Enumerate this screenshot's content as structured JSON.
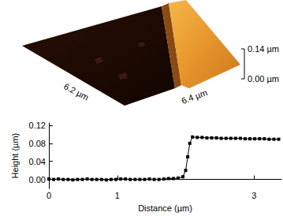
{
  "afm_image": {
    "x_size_label": "6.2 µm",
    "y_size_label": "6.4 µm",
    "z_labels": [
      "0.14 µm",
      "0.00 µm"
    ]
  },
  "chart_data": {
    "type": "line",
    "x_label": "Distance (µm)",
    "y_label": "Height (µm)",
    "x": [
      0,
      0.07,
      0.14,
      0.21,
      0.28,
      0.35,
      0.42,
      0.49,
      0.56,
      0.63,
      0.7,
      0.77,
      0.84,
      0.91,
      0.98,
      1.05,
      1.12,
      1.19,
      1.26,
      1.33,
      1.4,
      1.47,
      1.54,
      1.61,
      1.68,
      1.75,
      1.82,
      1.89,
      1.96,
      2.0,
      2.03,
      2.06,
      2.1,
      2.17,
      2.24,
      2.31,
      2.38,
      2.45,
      2.52,
      2.59,
      2.66,
      2.73,
      2.8,
      2.87,
      2.94,
      3.01,
      3.08,
      3.15,
      3.22,
      3.29,
      3.36
    ],
    "values": [
      0.001,
      0.0,
      0.001,
      0.0,
      0.0,
      -0.001,
      0.0,
      0.0,
      0.001,
      0.0,
      0.0,
      0.0,
      -0.001,
      0.0,
      0.0,
      0.001,
      0.001,
      0.0,
      0.0,
      0.0,
      0.0,
      0.001,
      0.0,
      0.0,
      0.001,
      0.002,
      0.002,
      0.003,
      0.006,
      0.02,
      0.05,
      0.08,
      0.094,
      0.093,
      0.093,
      0.092,
      0.092,
      0.092,
      0.091,
      0.091,
      0.091,
      0.091,
      0.091,
      0.09,
      0.09,
      0.09,
      0.09,
      0.09,
      0.089,
      0.089,
      0.089
    ],
    "color": "#000000",
    "marker": "square",
    "line_style": "solid",
    "xlim": [
      0,
      3.4
    ],
    "xticks": [
      0,
      1,
      3
    ],
    "ylim": [
      -0.02,
      0.125
    ],
    "yticks": [
      {
        "value": 0,
        "label": "0.00"
      },
      {
        "value": 0.04,
        "label": "0.04"
      },
      {
        "value": 0.08,
        "label": "0.08"
      },
      {
        "value": 0.12,
        "label": "0.12"
      }
    ],
    "grid": false
  }
}
